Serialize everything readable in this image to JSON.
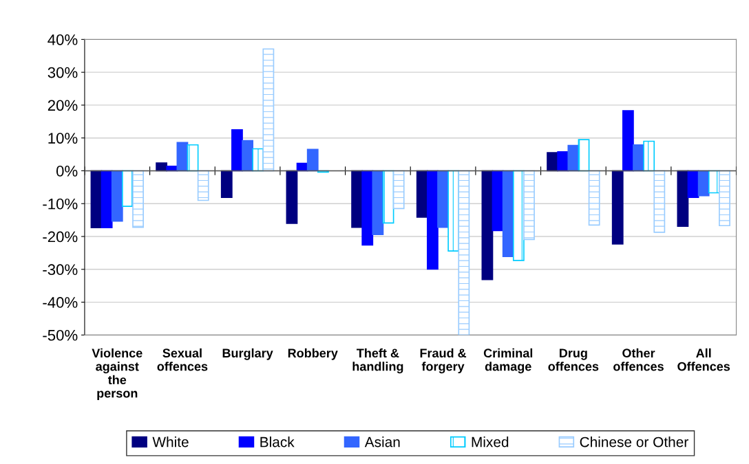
{
  "chart_data": {
    "type": "bar",
    "categories": [
      "Violence\nagainst\nthe\nperson",
      "Sexual\noffences",
      "Burglary",
      "Robbery",
      "Theft &\nhandling",
      "Fraud &\nforgery",
      "Criminal\ndamage",
      "Drug\noffences",
      "Other\noffences",
      "All\nOffences"
    ],
    "series": [
      {
        "name": "White",
        "color": "#000080",
        "values": [
          -17.3,
          2.4,
          -8.1,
          -16.0,
          -17.2,
          -14.1,
          -33.1,
          5.5,
          -22.3,
          -16.9
        ]
      },
      {
        "name": "Black",
        "color": "#0000ff",
        "values": [
          -17.3,
          1.4,
          12.5,
          2.3,
          -22.6,
          -29.9,
          -18.2,
          5.8,
          18.3,
          -8.1
        ]
      },
      {
        "name": "Asian",
        "color": "#3366ff",
        "values": [
          -15.3,
          8.6,
          9.2,
          6.5,
          -19.4,
          -17.2,
          -26.1,
          7.7,
          7.9,
          -7.6
        ]
      },
      {
        "name": "Mixed",
        "color": "#00ccff",
        "values": [
          -10.8,
          7.9,
          6.7,
          -0.4,
          -15.9,
          -24.4,
          -27.3,
          9.5,
          9.0,
          -6.7
        ]
      },
      {
        "name": "Chinese or Other",
        "color": "#99ccff",
        "values": [
          -17.2,
          -9.0,
          37.1,
          null,
          -11.5,
          -50,
          -20.9,
          -16.5,
          -18.7,
          -16.7
        ]
      }
    ],
    "ylim": [
      -50,
      40
    ],
    "yticks": [
      {
        "value": -50,
        "label": "-50%"
      },
      {
        "value": -40,
        "label": "-40%"
      },
      {
        "value": -30,
        "label": "-30%"
      },
      {
        "value": -20,
        "label": "-20%"
      },
      {
        "value": -10,
        "label": "-10%"
      },
      {
        "value": 0,
        "label": "0%"
      },
      {
        "value": 10,
        "label": "10%"
      },
      {
        "value": 20,
        "label": "20%"
      },
      {
        "value": 30,
        "label": "30%"
      },
      {
        "value": 40,
        "label": "40%"
      }
    ],
    "grid": "y",
    "legend": "bottom"
  }
}
